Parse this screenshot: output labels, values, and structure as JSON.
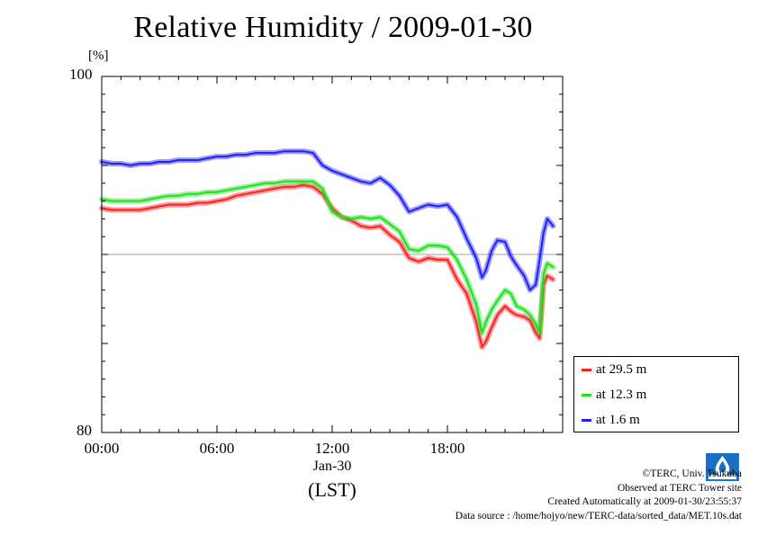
{
  "title": "Relative Humidity / 2009-01-30",
  "unit": "[%]",
  "x_tick_labels": [
    "00:00",
    "06:00",
    "12:00",
    "18:00"
  ],
  "date_label": "Jan-30",
  "timezone_label": "(LST)",
  "y_tick_labels": [
    "100",
    "80"
  ],
  "legend": [
    {
      "label": "at 29.5 m",
      "color": "#ff2020"
    },
    {
      "label": "at 12.3 m",
      "color": "#20e020"
    },
    {
      "label": "at 1.6 m",
      "color": "#2020ff"
    }
  ],
  "credits": {
    "copyright": "©TERC, Univ. Tsukuba",
    "site": "Observed at TERC Tower site",
    "created": "Created Automatically at 2009-01-30/23:55:37",
    "source": "Data source : /home/hojyo/new/TERC-data/sorted_data/MET.10s.dat"
  },
  "logo_icon": "terc-logo-icon",
  "chart_data": {
    "type": "line",
    "title": "Relative Humidity / 2009-01-30",
    "ylabel": "[%]",
    "ylim": [
      80,
      100
    ],
    "xlim": [
      0,
      23.6
    ],
    "x_unit": "hour (LST)",
    "x_ticks": [
      0,
      6,
      12,
      18
    ],
    "gridline_y": 90,
    "legend_position": "bottom-right outside",
    "series": [
      {
        "name": "at 29.5 m",
        "color": "#ff2020",
        "x": [
          0,
          0.5,
          1,
          1.5,
          2,
          2.5,
          3,
          3.5,
          4,
          4.5,
          5,
          5.5,
          6,
          6.5,
          7,
          7.5,
          8,
          8.5,
          9,
          9.5,
          10,
          10.5,
          11,
          11.5,
          12,
          12.5,
          13,
          13.5,
          14,
          14.5,
          15,
          15.5,
          16,
          16.5,
          17,
          17.5,
          18,
          18.5,
          19,
          19.5,
          19.8,
          20,
          20.3,
          20.6,
          21,
          21.3,
          21.6,
          22,
          22.3,
          22.6,
          22.8,
          23,
          23.2,
          23.5
        ],
        "values": [
          92.6,
          92.5,
          92.5,
          92.5,
          92.5,
          92.6,
          92.7,
          92.8,
          92.8,
          92.8,
          92.9,
          92.9,
          93.0,
          93.1,
          93.3,
          93.4,
          93.5,
          93.6,
          93.7,
          93.8,
          93.8,
          93.9,
          93.8,
          93.4,
          92.6,
          92.1,
          91.9,
          91.6,
          91.5,
          91.6,
          91.1,
          90.7,
          89.8,
          89.6,
          89.8,
          89.7,
          89.7,
          88.6,
          87.8,
          86.2,
          84.8,
          85.1,
          85.9,
          86.6,
          87.1,
          86.8,
          86.6,
          86.5,
          86.3,
          85.6,
          85.3,
          88.3,
          88.8,
          88.6
        ]
      },
      {
        "name": "at 12.3 m",
        "color": "#20e020",
        "x": [
          0,
          0.5,
          1,
          1.5,
          2,
          2.5,
          3,
          3.5,
          4,
          4.5,
          5,
          5.5,
          6,
          6.5,
          7,
          7.5,
          8,
          8.5,
          9,
          9.5,
          10,
          10.5,
          11,
          11.5,
          12,
          12.5,
          13,
          13.5,
          14,
          14.5,
          15,
          15.5,
          16,
          16.5,
          17,
          17.5,
          18,
          18.5,
          19,
          19.5,
          19.8,
          20,
          20.3,
          20.6,
          21,
          21.3,
          21.6,
          22,
          22.3,
          22.6,
          22.8,
          23,
          23.2,
          23.5
        ],
        "values": [
          93.1,
          93.0,
          93.0,
          93.0,
          93.0,
          93.1,
          93.2,
          93.3,
          93.3,
          93.4,
          93.4,
          93.5,
          93.5,
          93.6,
          93.7,
          93.8,
          93.9,
          94.0,
          94.0,
          94.1,
          94.1,
          94.1,
          94.1,
          93.7,
          92.4,
          92.1,
          92.0,
          92.1,
          92.0,
          92.1,
          91.7,
          91.3,
          90.3,
          90.2,
          90.5,
          90.5,
          90.4,
          89.7,
          88.6,
          87.2,
          85.6,
          86.2,
          86.9,
          87.4,
          88.0,
          87.8,
          87.1,
          86.9,
          86.6,
          86.1,
          85.6,
          88.9,
          89.5,
          89.3
        ]
      },
      {
        "name": "at 1.6 m",
        "color": "#2020ff",
        "x": [
          0,
          0.5,
          1,
          1.5,
          2,
          2.5,
          3,
          3.5,
          4,
          4.5,
          5,
          5.5,
          6,
          6.5,
          7,
          7.5,
          8,
          8.5,
          9,
          9.5,
          10,
          10.5,
          11,
          11.5,
          12,
          12.5,
          13,
          13.5,
          14,
          14.5,
          15,
          15.5,
          16,
          16.5,
          17,
          17.5,
          18,
          18.5,
          19,
          19.5,
          19.8,
          20,
          20.3,
          20.6,
          21,
          21.3,
          21.6,
          22,
          22.3,
          22.6,
          22.8,
          23,
          23.2,
          23.5
        ],
        "values": [
          95.2,
          95.1,
          95.1,
          95.0,
          95.1,
          95.1,
          95.2,
          95.2,
          95.3,
          95.3,
          95.3,
          95.4,
          95.5,
          95.5,
          95.6,
          95.6,
          95.7,
          95.7,
          95.7,
          95.8,
          95.8,
          95.8,
          95.7,
          95.0,
          94.7,
          94.5,
          94.3,
          94.1,
          94.0,
          94.3,
          93.9,
          93.3,
          92.4,
          92.6,
          92.8,
          92.7,
          92.8,
          92.1,
          90.9,
          89.8,
          88.7,
          89.1,
          90.2,
          90.8,
          90.7,
          89.9,
          89.4,
          88.8,
          88.0,
          88.3,
          89.7,
          91.2,
          92.0,
          91.6
        ]
      }
    ]
  }
}
